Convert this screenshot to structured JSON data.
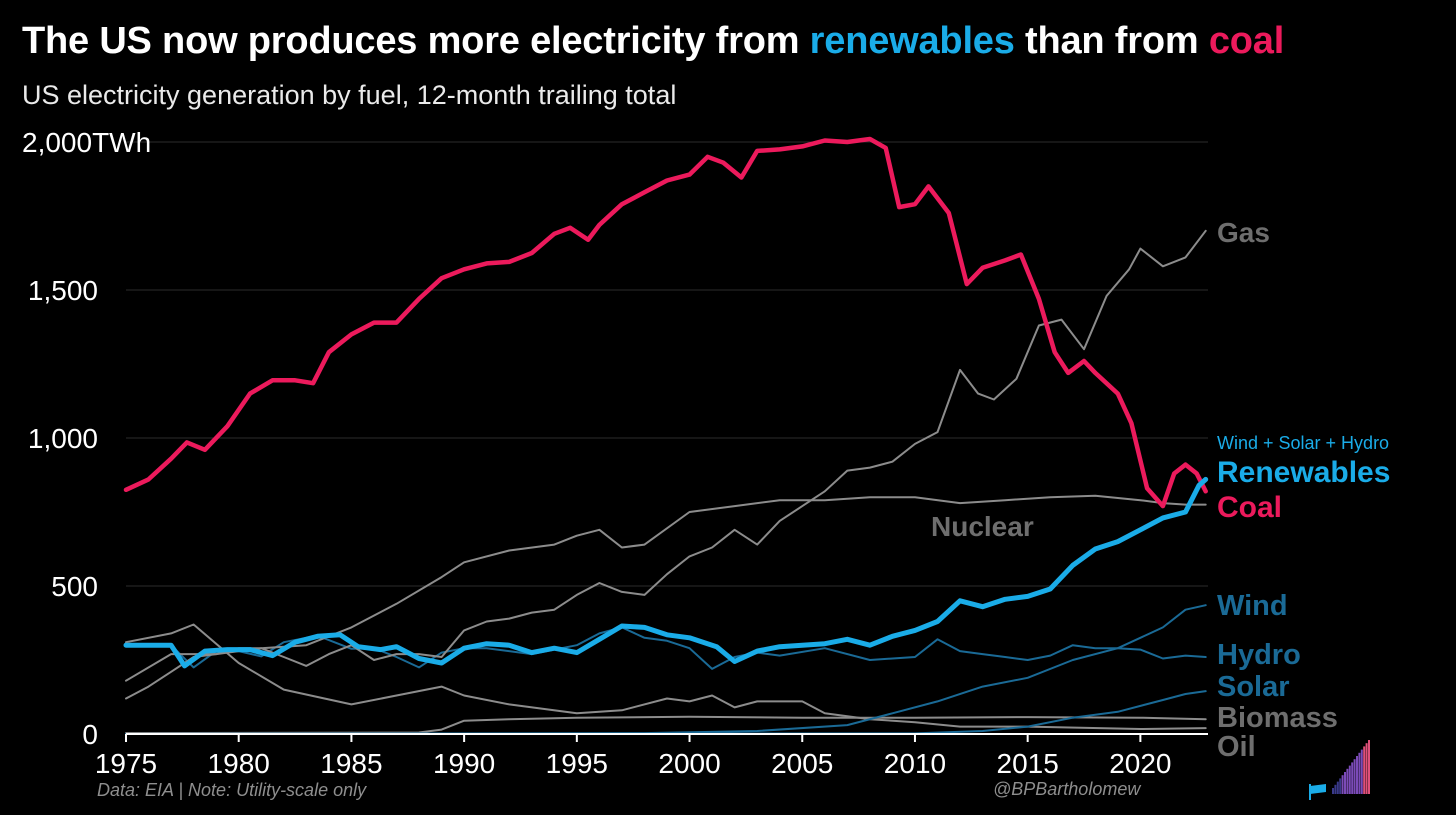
{
  "title": {
    "prefix": "The US now produces more electricity from ",
    "highlight1": "renewables",
    "middle": " than from ",
    "highlight2": "coal"
  },
  "subtitle": "US electricity generation by fuel, 12-month trailing total",
  "footer": {
    "source": "Data: EIA | Note: Utility-scale only",
    "handle": "@BPBartholomew"
  },
  "colors": {
    "background": "#000000",
    "coal": "#ec1a5c",
    "renewables": "#1aace8",
    "gas": "#8c8c8c",
    "gray_label": "#6e6e6e",
    "wind": "#1a6a96",
    "grid": "#2b2b2b"
  },
  "icons": {
    "logo": "flag-and-bars-logo"
  },
  "chart_data": {
    "type": "line",
    "title": "The US now produces more electricity from renewables than from coal",
    "subtitle": "US electricity generation by fuel, 12-month trailing total",
    "ylabel": "",
    "y_unit": "TWh",
    "xlim": [
      1975,
      2023
    ],
    "ylim": [
      0,
      2000
    ],
    "x_ticks": [
      "1975",
      "1980",
      "1985",
      "1990",
      "1995",
      "2000",
      "2005",
      "2010",
      "2015",
      "2020"
    ],
    "y_ticks": [
      {
        "value": 0,
        "label": "0"
      },
      {
        "value": 500,
        "label": "500"
      },
      {
        "value": 1000,
        "label": "1,000"
      },
      {
        "value": 1500,
        "label": "1,500"
      },
      {
        "value": 2000,
        "label": "2,000TWh"
      }
    ],
    "grid": "horizontal",
    "annotation": "Wind + Solar + Hydro",
    "series": [
      {
        "name": "Coal",
        "key": "coal",
        "color": "#ec1a5c",
        "width": 4.5,
        "x": [
          1975,
          1976,
          1977,
          1977.7,
          1978.5,
          1979.5,
          1980.5,
          1981.5,
          1982.5,
          1983.3,
          1984,
          1985,
          1986,
          1987,
          1988,
          1989,
          1990,
          1991,
          1992,
          1993,
          1994,
          1994.7,
          1995.5,
          1996,
          1997,
          1998,
          1999,
          2000,
          2000.8,
          2001.5,
          2002.3,
          2003,
          2004,
          2005,
          2006,
          2007,
          2008,
          2008.7,
          2009.3,
          2010,
          2010.6,
          2011.5,
          2012.3,
          2013,
          2014,
          2014.7,
          2015.5,
          2016.2,
          2016.8,
          2017.5,
          2018,
          2019,
          2019.6,
          2020.3,
          2021,
          2021.5,
          2022,
          2022.5,
          2022.9
        ],
        "values": [
          825,
          860,
          930,
          985,
          960,
          1040,
          1150,
          1195,
          1195,
          1185,
          1290,
          1350,
          1390,
          1390,
          1470,
          1540,
          1570,
          1590,
          1595,
          1625,
          1690,
          1710,
          1670,
          1720,
          1790,
          1830,
          1870,
          1890,
          1950,
          1930,
          1880,
          1970,
          1975,
          1985,
          2005,
          2000,
          2010,
          1980,
          1780,
          1790,
          1850,
          1760,
          1520,
          1575,
          1600,
          1620,
          1470,
          1290,
          1220,
          1260,
          1220,
          1150,
          1050,
          830,
          770,
          880,
          910,
          880,
          820
        ]
      },
      {
        "name": "Renewables",
        "key": "renewables",
        "color": "#1aace8",
        "width": 5,
        "x": [
          1975,
          1976,
          1977,
          1977.6,
          1978.5,
          1979.5,
          1980.5,
          1981.5,
          1982.5,
          1983.5,
          1984.5,
          1985.3,
          1986.3,
          1987,
          1988,
          1989,
          1990,
          1991,
          1992,
          1993,
          1994,
          1995,
          1996,
          1997,
          1998,
          1999,
          2000,
          2001.2,
          2002,
          2003,
          2004,
          2005,
          2006,
          2007,
          2008,
          2009,
          2010,
          2011,
          2012,
          2013,
          2014,
          2015,
          2016,
          2017,
          2018,
          2019,
          2020,
          2021,
          2022,
          2022.6,
          2022.9
        ],
        "values": [
          300,
          300,
          300,
          230,
          280,
          285,
          285,
          265,
          310,
          330,
          335,
          295,
          285,
          295,
          255,
          240,
          290,
          305,
          300,
          275,
          290,
          275,
          320,
          365,
          360,
          335,
          325,
          295,
          245,
          280,
          295,
          300,
          305,
          320,
          300,
          330,
          350,
          380,
          450,
          430,
          455,
          465,
          490,
          570,
          625,
          650,
          690,
          730,
          750,
          840,
          860
        ]
      },
      {
        "name": "Gas",
        "key": "gas",
        "color": "#8c8c8c",
        "width": 2,
        "x": [
          1975,
          1976,
          1977,
          1978,
          1979,
          1980,
          1981,
          1982,
          1983,
          1984,
          1985,
          1986,
          1987,
          1988,
          1989,
          1990,
          1991,
          1992,
          1993,
          1994,
          1995,
          1996,
          1997,
          1998,
          1999,
          2000,
          2001,
          2002,
          2003,
          2004,
          2005,
          2006,
          2007,
          2008,
          2009,
          2010,
          2011,
          2012,
          2012.8,
          2013.5,
          2014.5,
          2015.5,
          2016.5,
          2017.5,
          2018.5,
          2019.5,
          2020,
          2021,
          2022,
          2022.9
        ],
        "values": [
          120,
          160,
          210,
          260,
          270,
          290,
          290,
          260,
          230,
          270,
          300,
          250,
          270,
          270,
          260,
          350,
          380,
          390,
          410,
          420,
          470,
          510,
          480,
          470,
          540,
          600,
          630,
          690,
          640,
          720,
          770,
          820,
          890,
          900,
          920,
          980,
          1020,
          1230,
          1150,
          1130,
          1200,
          1380,
          1400,
          1300,
          1480,
          1570,
          1640,
          1580,
          1610,
          1700
        ]
      },
      {
        "name": "Nuclear",
        "key": "nuclear",
        "color": "#8c8c8c",
        "width": 2,
        "x": [
          1975,
          1977,
          1979,
          1981,
          1983,
          1985,
          1987,
          1989,
          1990,
          1992,
          1994,
          1995,
          1996,
          1997,
          1998,
          2000,
          2002,
          2004,
          2006,
          2008,
          2010,
          2012,
          2014,
          2016,
          2018,
          2020,
          2021,
          2022,
          2022.9
        ],
        "values": [
          180,
          270,
          270,
          290,
          300,
          360,
          440,
          530,
          580,
          620,
          640,
          670,
          690,
          630,
          640,
          750,
          770,
          790,
          790,
          800,
          800,
          780,
          790,
          800,
          805,
          790,
          780,
          775,
          775
        ]
      },
      {
        "name": "Wind",
        "key": "wind",
        "color": "#1a6a96",
        "width": 2,
        "x": [
          1975,
          1998,
          2003,
          2007,
          2009,
          2011,
          2013,
          2015,
          2017,
          2019,
          2021,
          2022,
          2022.9
        ],
        "values": [
          0,
          3,
          10,
          30,
          70,
          110,
          160,
          190,
          250,
          290,
          360,
          420,
          435
        ]
      },
      {
        "name": "Hydro",
        "key": "hydro",
        "color": "#1a6a96",
        "width": 2,
        "x": [
          1975,
          1977,
          1978,
          1979,
          1980,
          1981,
          1982,
          1983.5,
          1985,
          1986,
          1987,
          1988,
          1989,
          1990,
          1991,
          1993,
          1995,
          1996,
          1997,
          1998,
          1999,
          2000,
          2001,
          2002,
          2003,
          2004,
          2006,
          2008,
          2010,
          2011,
          2012,
          2013,
          2014,
          2015,
          2016,
          2017,
          2018,
          2019,
          2020,
          2021,
          2022,
          2022.9
        ],
        "values": [
          300,
          300,
          225,
          280,
          280,
          262,
          310,
          332,
          288,
          290,
          260,
          225,
          275,
          290,
          290,
          270,
          300,
          340,
          360,
          325,
          315,
          290,
          220,
          260,
          275,
          265,
          290,
          250,
          260,
          320,
          280,
          270,
          260,
          250,
          265,
          300,
          290,
          290,
          285,
          255,
          265,
          260
        ]
      },
      {
        "name": "Solar",
        "key": "solar",
        "color": "#1a6a96",
        "width": 2,
        "x": [
          1975,
          2010,
          2013,
          2015,
          2017,
          2019,
          2021,
          2022,
          2022.9
        ],
        "values": [
          0,
          2,
          10,
          25,
          55,
          75,
          115,
          135,
          145
        ]
      },
      {
        "name": "Biomass",
        "key": "biomass",
        "color": "#8c8c8c",
        "width": 2,
        "x": [
          1975,
          1988,
          1989,
          1990,
          1992,
          1995,
          2000,
          2005,
          2010,
          2015,
          2020,
          2022.9
        ],
        "values": [
          3,
          5,
          15,
          45,
          50,
          55,
          58,
          55,
          55,
          57,
          55,
          50
        ]
      },
      {
        "name": "Oil",
        "key": "oil",
        "color": "#8c8c8c",
        "width": 2,
        "x": [
          1975,
          1977,
          1978,
          1980,
          1982,
          1985,
          1987,
          1989,
          1990,
          1992,
          1995,
          1997,
          1999,
          2000,
          2001,
          2002,
          2003,
          2005,
          2006,
          2007,
          2008,
          2010,
          2012,
          2015,
          2020,
          2022.9
        ],
        "values": [
          310,
          340,
          370,
          240,
          150,
          100,
          130,
          160,
          130,
          100,
          70,
          80,
          120,
          110,
          130,
          90,
          110,
          110,
          70,
          60,
          50,
          40,
          25,
          25,
          17,
          20
        ]
      }
    ],
    "labels": [
      {
        "key": "gas",
        "text": "Gas",
        "color": "#6e6e6e"
      },
      {
        "key": "nuclear",
        "text": "Nuclear",
        "color": "#6e6e6e"
      },
      {
        "key": "renewables_note",
        "text": "Wind + Solar + Hydro",
        "color": "#1aace8"
      },
      {
        "key": "renewables",
        "text": "Renewables",
        "color": "#1aace8"
      },
      {
        "key": "coal",
        "text": "Coal",
        "color": "#ec1a5c"
      },
      {
        "key": "wind",
        "text": "Wind",
        "color": "#1a6a96"
      },
      {
        "key": "hydro",
        "text": "Hydro",
        "color": "#1a6a96"
      },
      {
        "key": "solar",
        "text": "Solar",
        "color": "#1a6a96"
      },
      {
        "key": "biomass",
        "text": "Biomass",
        "color": "#6e6e6e"
      },
      {
        "key": "oil",
        "text": "Oil",
        "color": "#6e6e6e"
      }
    ]
  }
}
